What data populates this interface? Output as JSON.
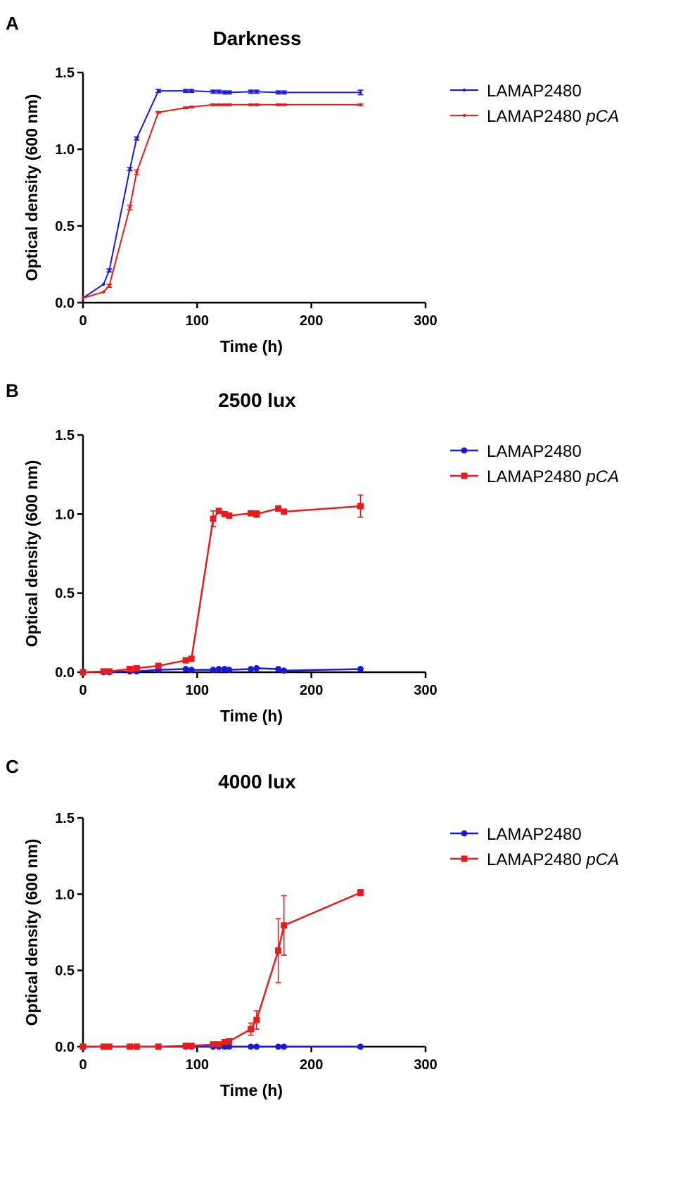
{
  "colors": {
    "series1": "#1a1ad6",
    "series2": "#e51c1c",
    "axis": "#000000"
  },
  "chart_data": [
    {
      "type": "line",
      "panel": "A",
      "title": "Darkness",
      "xlabel": "Time (h)",
      "ylabel": "Optical density (600 nm)",
      "xlim": [
        0,
        300
      ],
      "ylim": [
        0,
        1.5
      ],
      "xticks": [
        "0",
        "100",
        "200",
        "300"
      ],
      "yticks": [
        "0.0",
        "0.5",
        "1.0",
        "1.5"
      ],
      "legend": "top-right",
      "marker_style": "small",
      "series": [
        {
          "name": "LAMAP2480",
          "name_italic": "",
          "color": "series1",
          "marker": "dot",
          "x": [
            0,
            18,
            23,
            41,
            47,
            66,
            90,
            95,
            114,
            119,
            124,
            128,
            147,
            152,
            171,
            176,
            243
          ],
          "y": [
            0.03,
            0.12,
            0.21,
            0.87,
            1.07,
            1.38,
            1.38,
            1.38,
            1.375,
            1.375,
            1.37,
            1.37,
            1.375,
            1.375,
            1.37,
            1.37,
            1.37
          ],
          "err": [
            0,
            0,
            0.01,
            0.01,
            0.01,
            0.01,
            0.01,
            0.01,
            0.01,
            0.01,
            0.01,
            0.01,
            0.01,
            0.01,
            0.01,
            0.01,
            0.015
          ]
        },
        {
          "name": "LAMAP2480 ",
          "name_italic": "pCA",
          "color": "series2",
          "marker": "dot",
          "x": [
            0,
            18,
            23,
            41,
            47,
            66,
            90,
            95,
            114,
            119,
            124,
            128,
            147,
            152,
            171,
            176,
            243
          ],
          "y": [
            0.03,
            0.07,
            0.11,
            0.62,
            0.85,
            1.24,
            1.27,
            1.275,
            1.29,
            1.29,
            1.29,
            1.29,
            1.29,
            1.29,
            1.29,
            1.29,
            1.29
          ],
          "err": [
            0,
            0,
            0.01,
            0.015,
            0.015,
            0.005,
            0.005,
            0.005,
            0.005,
            0.005,
            0.005,
            0.005,
            0.005,
            0.005,
            0.005,
            0.005,
            0.005
          ]
        }
      ]
    },
    {
      "type": "line",
      "panel": "B",
      "title": "2500 lux",
      "xlabel": "Time (h)",
      "ylabel": "Optical density (600 nm)",
      "xlim": [
        0,
        300
      ],
      "ylim": [
        0,
        1.5
      ],
      "xticks": [
        "0",
        "100",
        "200",
        "300"
      ],
      "yticks": [
        "0.0",
        "0.5",
        "1.0",
        "1.5"
      ],
      "legend": "top-right",
      "marker_style": "large",
      "series": [
        {
          "name": "LAMAP2480",
          "name_italic": "",
          "color": "series1",
          "marker": "circle",
          "x": [
            0,
            18,
            23,
            41,
            47,
            66,
            90,
            95,
            114,
            119,
            124,
            128,
            147,
            152,
            171,
            176,
            243
          ],
          "y": [
            0.0,
            0.0,
            0.0,
            0.005,
            0.005,
            0.015,
            0.02,
            0.015,
            0.015,
            0.02,
            0.02,
            0.015,
            0.02,
            0.025,
            0.02,
            0.01,
            0.02
          ],
          "err": [
            0,
            0,
            0,
            0,
            0,
            0,
            0,
            0,
            0,
            0,
            0,
            0,
            0,
            0,
            0,
            0,
            0
          ]
        },
        {
          "name": "LAMAP2480 ",
          "name_italic": "pCA",
          "color": "series2",
          "marker": "square",
          "x": [
            0,
            18,
            23,
            41,
            47,
            66,
            90,
            95,
            114,
            119,
            124,
            128,
            147,
            152,
            171,
            176,
            243
          ],
          "y": [
            0.0,
            0.005,
            0.005,
            0.02,
            0.025,
            0.04,
            0.075,
            0.085,
            0.97,
            1.02,
            1.0,
            0.99,
            1.005,
            1.0,
            1.035,
            1.015,
            1.05
          ],
          "err": [
            0,
            0,
            0,
            0,
            0,
            0.005,
            0.005,
            0.01,
            0.05,
            0.01,
            0.01,
            0.01,
            0.015,
            0.02,
            0.01,
            0.015,
            0.07
          ]
        }
      ]
    },
    {
      "type": "line",
      "panel": "C",
      "title": "4000 lux",
      "xlabel": "Time (h)",
      "ylabel": "Optical density (600 nm)",
      "xlim": [
        0,
        300
      ],
      "ylim": [
        0,
        1.5
      ],
      "xticks": [
        "0",
        "100",
        "200",
        "300"
      ],
      "yticks": [
        "0.0",
        "0.5",
        "1.0",
        "1.5"
      ],
      "legend": "top-right",
      "marker_style": "large",
      "series": [
        {
          "name": "LAMAP2480",
          "name_italic": "",
          "color": "series1",
          "marker": "circle",
          "x": [
            0,
            18,
            23,
            41,
            47,
            66,
            90,
            95,
            114,
            119,
            124,
            128,
            147,
            152,
            171,
            176,
            243
          ],
          "y": [
            0,
            0,
            0,
            0,
            0,
            0,
            0,
            0,
            0,
            0,
            0,
            0,
            0,
            0,
            0,
            0,
            0
          ],
          "err": [
            0,
            0,
            0,
            0,
            0,
            0,
            0,
            0,
            0,
            0,
            0,
            0,
            0,
            0,
            0,
            0,
            0
          ]
        },
        {
          "name": "LAMAP2480 ",
          "name_italic": "pCA",
          "color": "series2",
          "marker": "square",
          "x": [
            0,
            18,
            23,
            41,
            47,
            66,
            90,
            95,
            114,
            119,
            124,
            128,
            147,
            152,
            171,
            176,
            243
          ],
          "y": [
            0.0,
            0.0,
            0.0,
            0.0,
            0.0,
            0.0,
            0.005,
            0.005,
            0.015,
            0.015,
            0.03,
            0.035,
            0.115,
            0.175,
            0.63,
            0.795,
            1.01
          ],
          "err": [
            0,
            0,
            0,
            0,
            0,
            0,
            0.005,
            0.005,
            0.005,
            0.005,
            0.005,
            0.005,
            0.04,
            0.06,
            0.21,
            0.195,
            0.02
          ]
        }
      ]
    }
  ]
}
